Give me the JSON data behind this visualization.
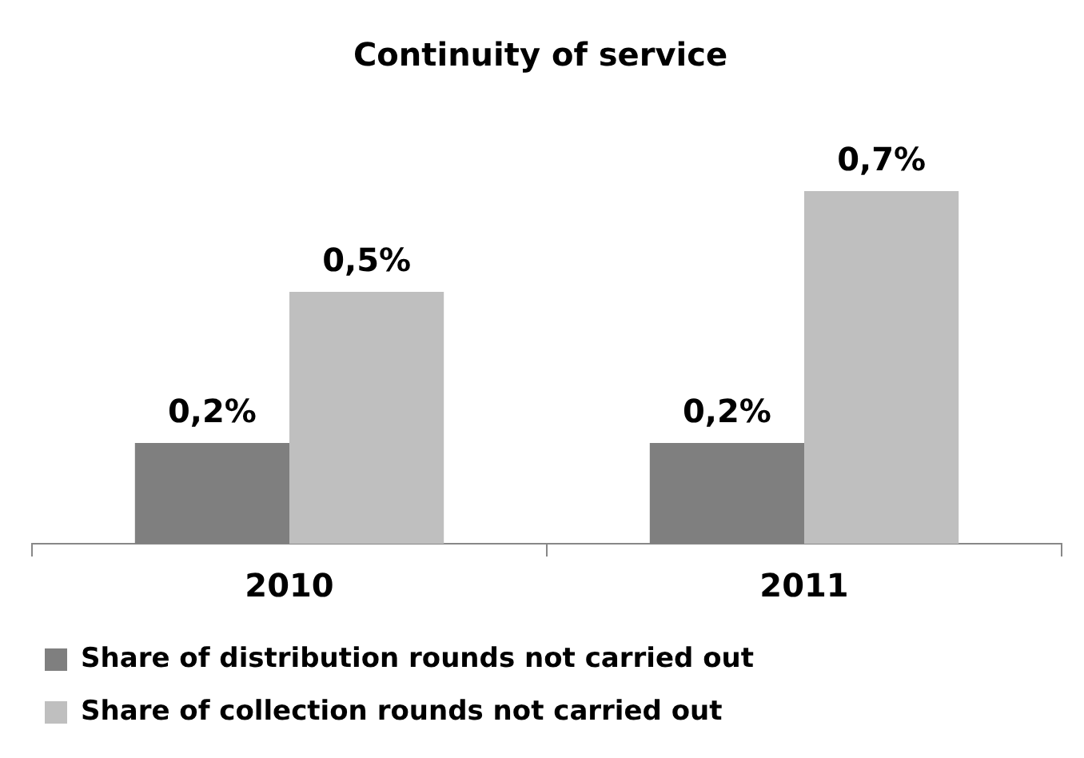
{
  "chart_data": {
    "type": "bar",
    "title": "Continuity of service",
    "categories": [
      "2010",
      "2011"
    ],
    "series": [
      {
        "name": "Share of distribution rounds not carried out",
        "color": "#7f7f7f",
        "values": [
          0.2,
          0.2
        ],
        "value_labels": [
          "0,2%",
          "0,2%"
        ]
      },
      {
        "name": "Share of collection rounds not carried out",
        "color": "#bfbfbf",
        "values": [
          0.5,
          0.7
        ],
        "value_labels": [
          "0,5%",
          "0,7%"
        ]
      }
    ],
    "relative": false,
    "grid": false,
    "legend": "bottom"
  }
}
